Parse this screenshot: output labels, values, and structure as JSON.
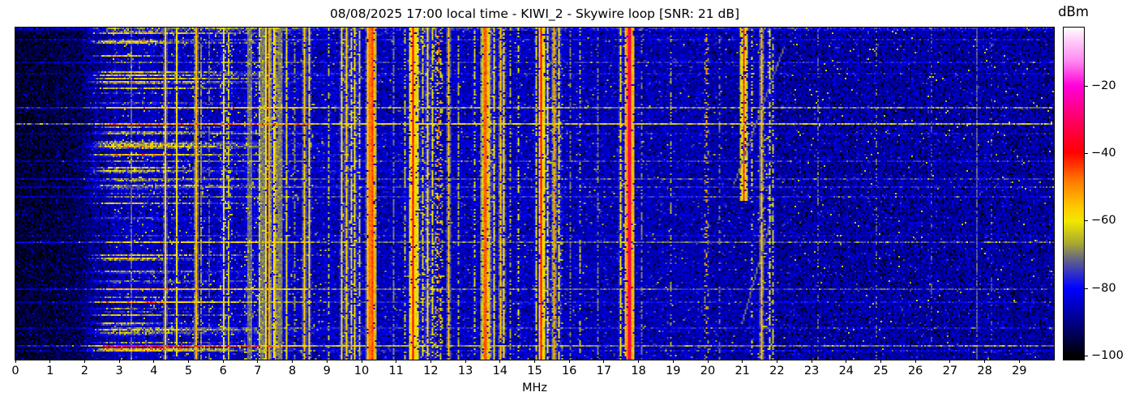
{
  "title": "08/08/2025 17:00 local time - KIWI_2 - Skywire loop [SNR: 21 dB]",
  "snr_db": 21,
  "xaxis": {
    "label": "MHz",
    "ticks": [
      0,
      1,
      2,
      3,
      4,
      5,
      6,
      7,
      8,
      9,
      10,
      11,
      12,
      13,
      14,
      15,
      16,
      17,
      18,
      19,
      20,
      21,
      22,
      23,
      24,
      25,
      26,
      27,
      28,
      29
    ]
  },
  "colorbar": {
    "label": "dBm",
    "ticks": [
      {
        "label": "−20",
        "value": -20
      },
      {
        "label": "−40",
        "value": -40
      },
      {
        "label": "−60",
        "value": -60
      },
      {
        "label": "−80",
        "value": -80
      },
      {
        "label": "−100",
        "value": -100
      }
    ]
  },
  "chart_data": {
    "type": "heatmap",
    "subtype": "hf-spectrum-waterfall",
    "title": "08/08/2025 17:00 local time - KIWI_2 - Skywire loop [SNR: 21 dB]",
    "xlabel": "MHz",
    "x_range_mhz": [
      0,
      30
    ],
    "value_axis": {
      "label": "dBm",
      "vmax": -2.5,
      "vmin": -101,
      "ticks": [
        -20,
        -40,
        -60,
        -80,
        -100
      ]
    },
    "legend_position": "right-colorbar",
    "grid": false,
    "colormap_stops": [
      [
        0.0,
        "#ffffff"
      ],
      [
        0.03,
        "#ffd6fa"
      ],
      [
        0.1,
        "#ff8af0"
      ],
      [
        0.176,
        "#ff00d8"
      ],
      [
        0.28,
        "#ff0060"
      ],
      [
        0.376,
        "#ff0000"
      ],
      [
        0.46,
        "#ff7800"
      ],
      [
        0.54,
        "#ffc800"
      ],
      [
        0.583,
        "#f0e800"
      ],
      [
        0.65,
        "#a8a832"
      ],
      [
        0.705,
        "#5a5a90"
      ],
      [
        0.755,
        "#2020dc"
      ],
      [
        0.785,
        "#0000ff"
      ],
      [
        0.86,
        "#0000a6"
      ],
      [
        0.93,
        "#000050"
      ],
      [
        0.988,
        "#000000"
      ],
      [
        1.0,
        "#000000"
      ]
    ],
    "noise": {
      "floor_left_dbm": -96.5,
      "floor_mid_dbm": -85.5,
      "floor_right_dbm": -87,
      "speckle_db": 6.5,
      "seed": 1337
    },
    "broadcast_bands_mhz": [
      [
        5.9,
        6.25
      ],
      [
        6.6,
        7.7
      ],
      [
        7.2,
        7.5
      ],
      [
        9.4,
        9.95
      ],
      [
        11.6,
        12.1
      ],
      [
        13.5,
        13.87
      ],
      [
        15.1,
        15.8
      ],
      [
        17.48,
        17.9
      ],
      [
        21.45,
        21.9
      ]
    ],
    "static_streaks": {
      "count": 48,
      "amp_min_db": 7,
      "amp_max_db": 30,
      "f_plateau_mhz": [
        2.6,
        5.0
      ]
    },
    "wideband_streaks": {
      "fracs": [
        0.239,
        0.287,
        0.455,
        0.642,
        0.787,
        0.9,
        0.957
      ],
      "amps_db": [
        17,
        22,
        10,
        14,
        12,
        8,
        16
      ],
      "random_count": 12
    },
    "chirps": [
      {
        "row_start_frac": 0.06,
        "mhz_start": 22.2,
        "mhz_per_row": -0.017,
        "rows": 85,
        "level_dbm": -71
      },
      {
        "row_start_frac": 0.55,
        "mhz_start": 21.9,
        "mhz_per_row": -0.013,
        "rows": 70,
        "level_dbm": -71
      }
    ],
    "carrier_fields": [
      "mhz",
      "dbm",
      "width_bins",
      "duty",
      "row_start_frac",
      "row_end_frac"
    ],
    "carriers": [
      [
        3.33,
        -72,
        1,
        0.85,
        0,
        1
      ],
      [
        4.3,
        -57,
        1,
        1,
        0,
        1
      ],
      [
        4.65,
        -61,
        1,
        0.95,
        0,
        1
      ],
      [
        5.18,
        -54,
        1,
        1,
        0,
        1
      ],
      [
        5.34,
        -69,
        1,
        0.8,
        0,
        1
      ],
      [
        5.6,
        -72,
        1,
        0.6,
        0,
        1
      ],
      [
        6.0,
        -61,
        1,
        0.9,
        0,
        1
      ],
      [
        6.13,
        -64,
        1,
        0.8,
        0,
        1
      ],
      [
        6.7,
        -71,
        3,
        1,
        0,
        1
      ],
      [
        7.02,
        -63,
        1,
        0.85,
        0,
        1
      ],
      [
        7.1,
        -70,
        3,
        1,
        0,
        1
      ],
      [
        7.22,
        -58,
        1,
        0.95,
        0,
        1
      ],
      [
        7.33,
        -52,
        1,
        1,
        0,
        1
      ],
      [
        7.45,
        -60,
        1,
        0.9,
        0,
        1
      ],
      [
        7.52,
        -53,
        1,
        0.9,
        0,
        1
      ],
      [
        7.6,
        -70,
        3,
        1,
        0,
        1
      ],
      [
        7.85,
        -62,
        1,
        0.9,
        0,
        1
      ],
      [
        8.06,
        -69,
        1,
        0.6,
        0,
        1
      ],
      [
        8.35,
        -56,
        1,
        0.95,
        0,
        1
      ],
      [
        8.47,
        -60,
        1,
        0.9,
        0,
        1
      ],
      [
        9.05,
        -65,
        1,
        0.5,
        0,
        1
      ],
      [
        9.42,
        -60,
        1,
        0.9,
        0,
        1
      ],
      [
        9.56,
        -57,
        1,
        0.9,
        0,
        1
      ],
      [
        9.68,
        -62,
        1,
        0.8,
        0,
        1
      ],
      [
        9.8,
        -59,
        1,
        0.85,
        0,
        1
      ],
      [
        9.95,
        -63,
        1,
        0.7,
        0,
        1
      ],
      [
        10.15,
        -56,
        1,
        0.9,
        0,
        1
      ],
      [
        10.22,
        -48,
        2,
        1,
        0,
        1
      ],
      [
        10.3,
        -44,
        1,
        1,
        0,
        1
      ],
      [
        10.38,
        -54,
        1,
        0.9,
        0,
        1
      ],
      [
        10.9,
        -70,
        1,
        0.6,
        0,
        1
      ],
      [
        11.27,
        -64,
        1,
        0.5,
        0,
        1
      ],
      [
        11.5,
        -40,
        1,
        1,
        0,
        1
      ],
      [
        11.63,
        -60,
        1,
        0.85,
        0,
        1
      ],
      [
        11.77,
        -62,
        1,
        0.7,
        0,
        1
      ],
      [
        11.9,
        -58,
        1,
        0.9,
        0,
        1
      ],
      [
        12.05,
        -61,
        1,
        0.75,
        0,
        1
      ],
      [
        12.25,
        -46,
        1,
        0.35,
        0,
        1
      ],
      [
        12.5,
        -55,
        1,
        0.9,
        0,
        1
      ],
      [
        12.78,
        -66,
        1,
        0.6,
        0,
        1
      ],
      [
        13.28,
        -63,
        1,
        0.6,
        0,
        1
      ],
      [
        13.57,
        -46,
        2,
        1,
        0,
        1
      ],
      [
        13.7,
        -56,
        1,
        0.9,
        0,
        1
      ],
      [
        13.83,
        -60,
        1,
        0.8,
        0,
        1
      ],
      [
        14.0,
        -55,
        1,
        0.9,
        0,
        1
      ],
      [
        14.12,
        -58,
        1,
        0.8,
        0,
        1
      ],
      [
        14.3,
        -66,
        1,
        0.5,
        0,
        1
      ],
      [
        14.55,
        -61,
        1,
        0.4,
        0,
        1
      ],
      [
        15.05,
        -62,
        1,
        0.7,
        0,
        1
      ],
      [
        15.2,
        -40,
        1,
        1,
        0,
        1
      ],
      [
        15.38,
        -60,
        1,
        0.8,
        0,
        1
      ],
      [
        15.57,
        -52,
        1,
        0.9,
        0,
        1
      ],
      [
        15.72,
        -60,
        1,
        0.7,
        0,
        1
      ],
      [
        16.05,
        -70,
        1,
        0.5,
        0,
        1
      ],
      [
        16.33,
        -65,
        1,
        0.4,
        0,
        1
      ],
      [
        16.85,
        -70,
        1,
        0.5,
        0,
        1
      ],
      [
        17.5,
        -60,
        1,
        0.8,
        0,
        1
      ],
      [
        17.72,
        -33,
        2,
        1,
        0,
        1
      ],
      [
        17.82,
        -55,
        1,
        0.95,
        0,
        1
      ],
      [
        18.1,
        -70,
        1,
        0.5,
        0,
        1
      ],
      [
        18.95,
        -67,
        1,
        0.35,
        0,
        1
      ],
      [
        19.95,
        -52,
        1,
        0.32,
        0,
        1
      ],
      [
        20.35,
        -70,
        1,
        0.3,
        0,
        1
      ],
      [
        21.05,
        -43,
        1,
        0.92,
        0,
        0.52
      ],
      [
        21.3,
        -62,
        1,
        0.35,
        0,
        1
      ],
      [
        21.55,
        -55,
        1,
        0.95,
        0,
        1
      ],
      [
        21.78,
        -62,
        1,
        0.6,
        0,
        1
      ],
      [
        21.88,
        -64,
        1,
        0.5,
        0,
        1
      ],
      [
        23.2,
        -72,
        1,
        0.4,
        0,
        1
      ],
      [
        24.9,
        -71,
        1,
        0.3,
        0,
        1
      ],
      [
        26.5,
        -73,
        1,
        0.3,
        0,
        1
      ],
      [
        27.8,
        -73,
        1,
        0.8,
        0,
        1
      ],
      [
        28.2,
        -74,
        1,
        0.25,
        0,
        1
      ]
    ]
  }
}
